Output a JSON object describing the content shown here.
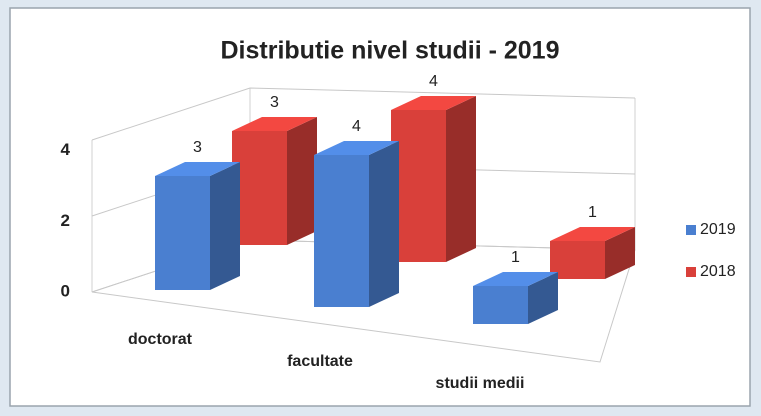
{
  "chart_data": {
    "type": "bar3d",
    "title": "Distributie nivel studii  - 2019",
    "categories": [
      "doctorat",
      "facultate",
      "studii medii"
    ],
    "series": [
      {
        "name": "2019",
        "color": "#4a7fd0",
        "values": [
          3,
          4,
          1
        ]
      },
      {
        "name": "2018",
        "color": "#d9403a",
        "values": [
          3,
          4,
          1
        ]
      }
    ],
    "ylim": [
      0,
      4
    ],
    "yticks": [
      0,
      2,
      4
    ],
    "grid": true,
    "legend": "right"
  }
}
